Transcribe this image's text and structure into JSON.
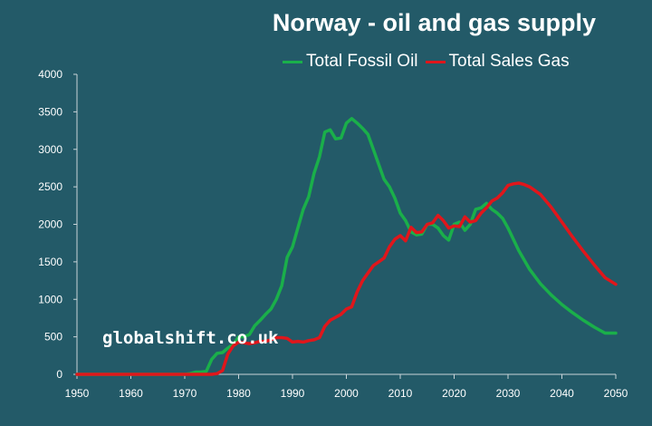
{
  "chart_data": {
    "type": "line",
    "title": "Norway - oil and gas supply",
    "watermark": "globalshift.co.uk",
    "xlabel": "",
    "ylabel": "",
    "xlim": [
      1950,
      2050
    ],
    "ylim": [
      0,
      4000
    ],
    "xticks": [
      "1950",
      "1960",
      "1970",
      "1980",
      "1990",
      "2000",
      "2010",
      "2020",
      "2030",
      "2040",
      "2050"
    ],
    "yticks": [
      "0",
      "500",
      "1000",
      "1500",
      "2000",
      "2500",
      "3000",
      "3500",
      "4000"
    ],
    "grid": false,
    "legend_position": "top",
    "series": [
      {
        "name": "Total Fossil Oil",
        "color": "#1aaf4a",
        "x": [
          1950,
          1970,
          1971,
          1972,
          1973,
          1974,
          1975,
          1976,
          1977,
          1978,
          1979,
          1980,
          1981,
          1982,
          1983,
          1984,
          1985,
          1986,
          1987,
          1988,
          1989,
          1990,
          1991,
          1992,
          1993,
          1994,
          1995,
          1996,
          1997,
          1998,
          1999,
          2000,
          2001,
          2002,
          2003,
          2004,
          2005,
          2006,
          2007,
          2008,
          2009,
          2010,
          2011,
          2012,
          2013,
          2014,
          2015,
          2016,
          2017,
          2018,
          2019,
          2020,
          2021,
          2022,
          2023,
          2024,
          2025,
          2026,
          2027,
          2028,
          2029,
          2030,
          2032,
          2034,
          2036,
          2038,
          2040,
          2042,
          2044,
          2046,
          2048,
          2050
        ],
        "values": [
          0,
          0,
          10,
          30,
          30,
          40,
          200,
          280,
          290,
          350,
          400,
          500,
          500,
          530,
          650,
          720,
          800,
          870,
          1000,
          1180,
          1560,
          1700,
          1950,
          2200,
          2370,
          2680,
          2900,
          3230,
          3260,
          3140,
          3150,
          3350,
          3410,
          3350,
          3280,
          3200,
          3000,
          2800,
          2600,
          2500,
          2350,
          2150,
          2050,
          1900,
          1860,
          1870,
          2000,
          2000,
          1950,
          1850,
          1790,
          2000,
          2030,
          1920,
          2000,
          2200,
          2220,
          2280,
          2200,
          2150,
          2080,
          1950,
          1650,
          1400,
          1210,
          1060,
          930,
          820,
          720,
          630,
          550,
          550
        ],
        "y_end_note": ""
      },
      {
        "name": "Total Sales Gas",
        "color": "#e0161b",
        "x": [
          1950,
          1975,
          1976,
          1977,
          1978,
          1979,
          1980,
          1981,
          1982,
          1983,
          1984,
          1985,
          1986,
          1987,
          1988,
          1989,
          1990,
          1991,
          1992,
          1993,
          1994,
          1995,
          1996,
          1997,
          1998,
          1999,
          2000,
          2001,
          2002,
          2003,
          2004,
          2005,
          2006,
          2007,
          2008,
          2009,
          2010,
          2011,
          2012,
          2013,
          2014,
          2015,
          2016,
          2017,
          2018,
          2019,
          2020,
          2021,
          2022,
          2023,
          2024,
          2025,
          2026,
          2027,
          2028,
          2029,
          2030,
          2031,
          2032,
          2033,
          2034,
          2036,
          2038,
          2040,
          2042,
          2044,
          2046,
          2048,
          2050
        ],
        "values": [
          0,
          0,
          10,
          50,
          270,
          380,
          430,
          420,
          410,
          420,
          440,
          440,
          460,
          490,
          490,
          480,
          430,
          440,
          430,
          450,
          460,
          490,
          640,
          720,
          760,
          800,
          870,
          900,
          1100,
          1250,
          1350,
          1450,
          1500,
          1550,
          1700,
          1800,
          1850,
          1780,
          1960,
          1890,
          1900,
          2000,
          2020,
          2120,
          2050,
          1950,
          1980,
          1970,
          2100,
          2030,
          2050,
          2150,
          2220,
          2310,
          2350,
          2420,
          2520,
          2540,
          2550,
          2530,
          2500,
          2400,
          2230,
          2030,
          1830,
          1640,
          1460,
          1290,
          1200
        ]
      }
    ]
  }
}
